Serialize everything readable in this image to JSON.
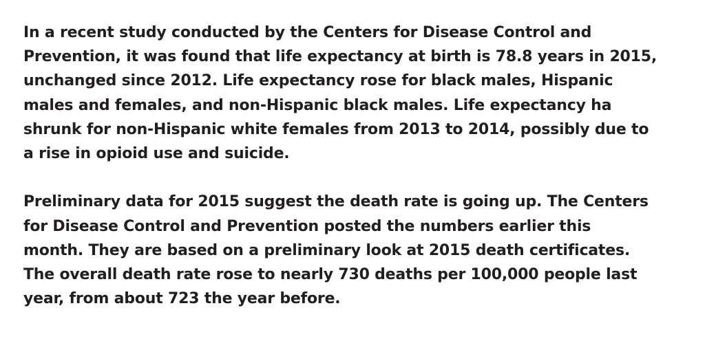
{
  "document": {
    "paragraphs": [
      {
        "lines": [
          "In a recent study conducted by the Centers for Disease Control and",
          "Prevention, it was found that life expectancy at birth is 78.8 years in 2015,",
          "unchanged since 2012. Life expectancy rose for black males, Hispanic",
          "males and females, and non-Hispanic black males. Life expectancy ha",
          "shrunk for non-Hispanic white females from 2013 to 2014, possibly due to",
          "a rise in opioid use and suicide."
        ]
      },
      {
        "lines": [
          "Preliminary data for 2015 suggest the death rate is going up. The Centers",
          "for Disease Control and Prevention posted the numbers earlier this",
          "month. They are based on a preliminary look at 2015 death certificates.",
          "The overall death rate rose to nearly 730 deaths per 100,000 people last",
          "year, from about 723 the year before."
        ]
      }
    ]
  }
}
